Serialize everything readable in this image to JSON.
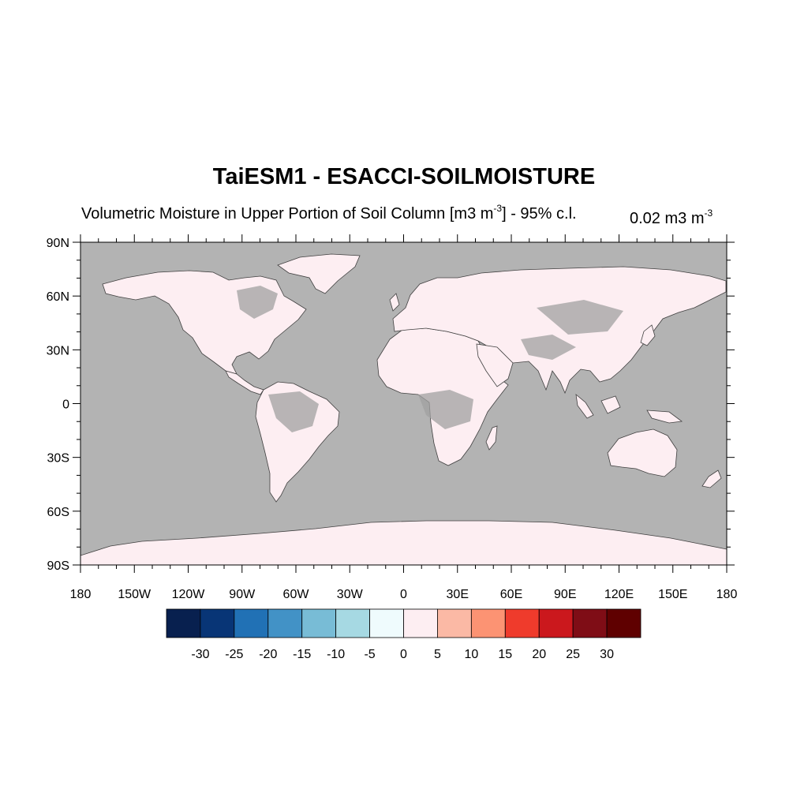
{
  "title": "TaiESM1 - ESACCI-SOILMOISTURE",
  "subtitle": {
    "text": "Volumetric Moisture in Upper Portion of Soil Column [m3 m",
    "sup1": "-3",
    "tail": "] - 95% c.l.",
    "right_text": "0.02 m3 m",
    "right_sup": "-3"
  },
  "map": {
    "projection": "cylindrical-equidistant",
    "lon_range": [
      -180,
      180
    ],
    "lat_range": [
      -90,
      90
    ],
    "ocean_color": "#b3b3b3",
    "land_fill_color": "#fdeef2",
    "land_masked_color": "#a0a0a0",
    "coastline_color": "#404040",
    "lat_ticks": [
      {
        "value": 90,
        "label": "90N"
      },
      {
        "value": 60,
        "label": "60N"
      },
      {
        "value": 30,
        "label": "30N"
      },
      {
        "value": 0,
        "label": "0"
      },
      {
        "value": -30,
        "label": "30S"
      },
      {
        "value": -60,
        "label": "60S"
      },
      {
        "value": -90,
        "label": "90S"
      }
    ],
    "lon_ticks": [
      {
        "value": -180,
        "label": "180"
      },
      {
        "value": -150,
        "label": "150W"
      },
      {
        "value": -120,
        "label": "120W"
      },
      {
        "value": -90,
        "label": "90W"
      },
      {
        "value": -60,
        "label": "60W"
      },
      {
        "value": -30,
        "label": "30W"
      },
      {
        "value": 0,
        "label": "0"
      },
      {
        "value": 30,
        "label": "30E"
      },
      {
        "value": 60,
        "label": "60E"
      },
      {
        "value": 90,
        "label": "90E"
      },
      {
        "value": 120,
        "label": "120E"
      },
      {
        "value": 150,
        "label": "150E"
      },
      {
        "value": 180,
        "label": "180"
      }
    ]
  },
  "colorbar": {
    "colors": [
      "#08204f",
      "#083576",
      "#2171b5",
      "#4292c6",
      "#78bcd6",
      "#a6d9e3",
      "#effbfd",
      "#fdeef2",
      "#fbb9a5",
      "#fc9373",
      "#ef3b2c",
      "#cb181d",
      "#7f0d16",
      "#5f0000"
    ],
    "labels": [
      "-30",
      "-25",
      "-20",
      "-15",
      "-10",
      "-5",
      "0",
      "5",
      "10",
      "15",
      "20",
      "25",
      "30"
    ]
  }
}
